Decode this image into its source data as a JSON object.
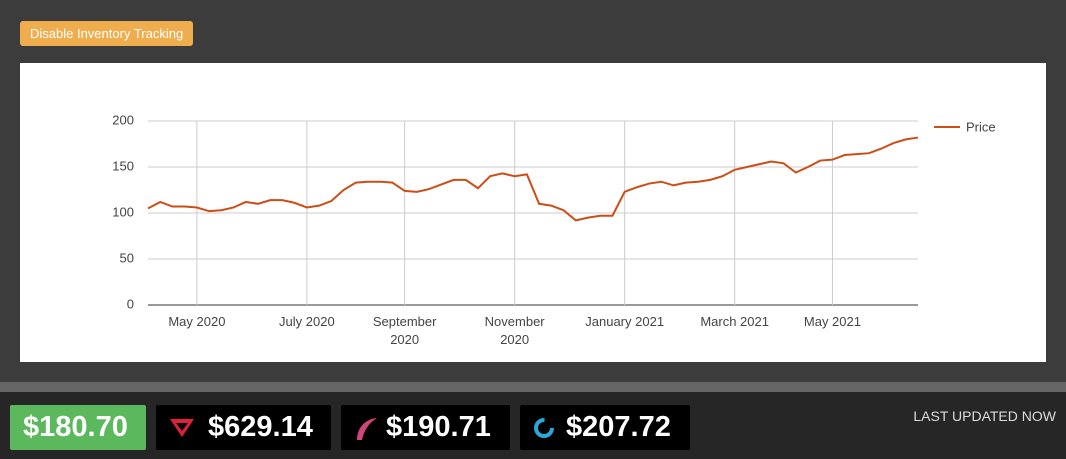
{
  "button": "Disable Inventory Tracking",
  "chart_data": {
    "type": "line",
    "categories": [
      null,
      null,
      null,
      null,
      "May 2020",
      null,
      null,
      null,
      null,
      null,
      null,
      null,
      null,
      "July 2020",
      null,
      null,
      null,
      null,
      null,
      null,
      null,
      "September 2020",
      null,
      null,
      null,
      null,
      null,
      null,
      null,
      null,
      "November 2020",
      null,
      null,
      null,
      null,
      null,
      null,
      null,
      null,
      "January 2021",
      null,
      null,
      null,
      null,
      null,
      null,
      null,
      null,
      "March 2021",
      null,
      null,
      null,
      null,
      null,
      null,
      null,
      "May 2021",
      null,
      null,
      null,
      null,
      null,
      null,
      null
    ],
    "series": [
      {
        "name": "Price",
        "color": "#cc4e16",
        "values": [
          105,
          112,
          107,
          107,
          106,
          102,
          103,
          106,
          112,
          110,
          114,
          114,
          111,
          106,
          108,
          113,
          125,
          133,
          134,
          134,
          133,
          124,
          123,
          126,
          131,
          136,
          136,
          127,
          140,
          143,
          140,
          142,
          110,
          108,
          103,
          92,
          95,
          97,
          97,
          123,
          128,
          132,
          134,
          130,
          133,
          134,
          136,
          140,
          147,
          150,
          153,
          156,
          154,
          144,
          150,
          157,
          158,
          163,
          164,
          165,
          170,
          176,
          180,
          182
        ]
      }
    ],
    "ylim": [
      0,
      200
    ],
    "yticks": [
      0,
      50,
      100,
      150,
      200
    ],
    "grid": true,
    "legend": "right"
  },
  "prices": [
    "$180.70",
    "$629.14",
    "$190.71",
    "$207.72"
  ],
  "status": "LAST UPDATED NOW"
}
